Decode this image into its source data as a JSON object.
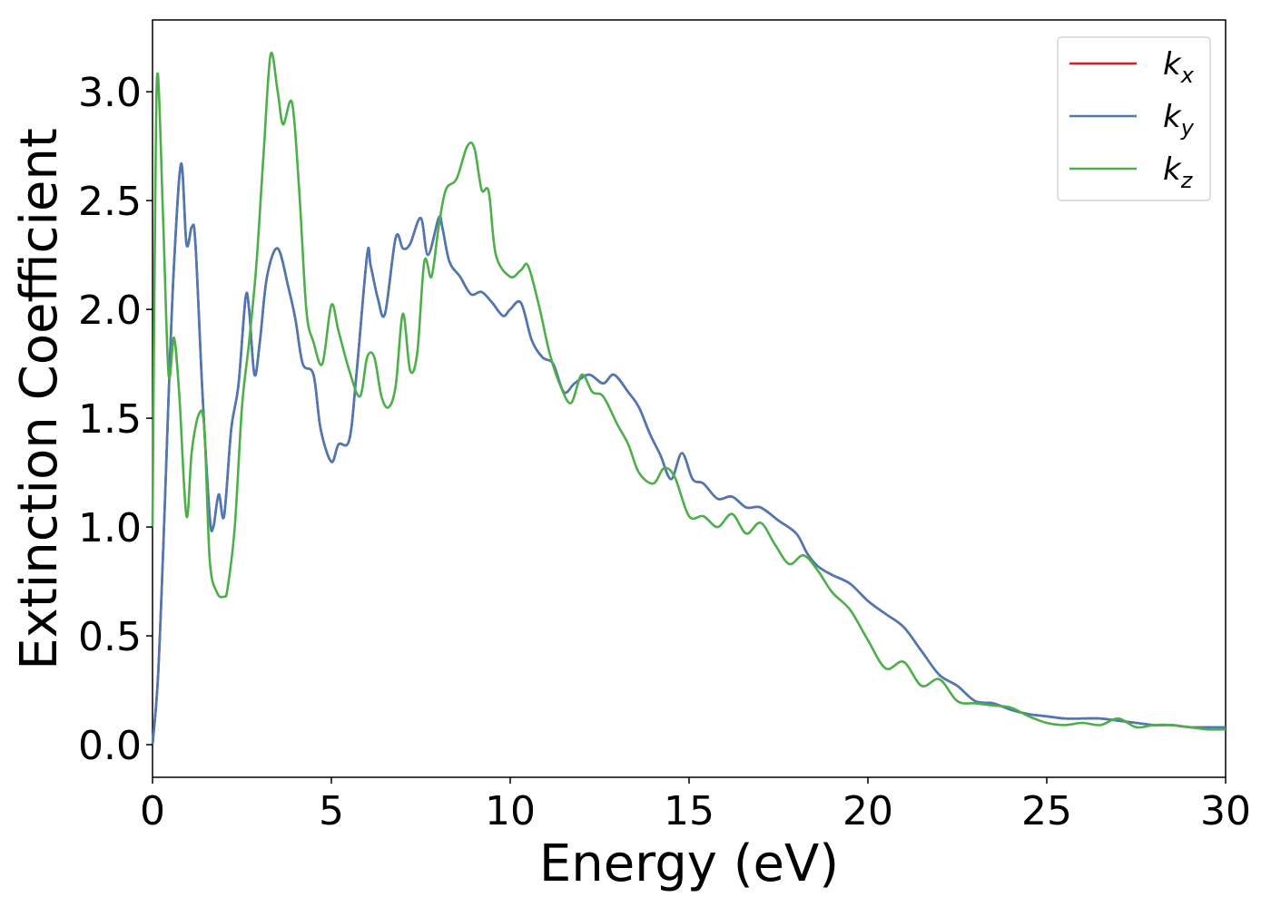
{
  "chart_data": {
    "type": "line",
    "title": "",
    "xlabel": "Energy (eV)",
    "ylabel": "Extinction Coefficient",
    "xlim": [
      0,
      30
    ],
    "ylim": [
      -0.15,
      3.33
    ],
    "xticks": [
      0,
      5,
      10,
      15,
      20,
      25,
      30
    ],
    "xtick_labels": [
      "0",
      "5",
      "10",
      "15",
      "20",
      "25",
      "30"
    ],
    "yticks": [
      0.0,
      0.5,
      1.0,
      1.5,
      2.0,
      2.5,
      3.0
    ],
    "ytick_labels": [
      "0.0",
      "0.5",
      "1.0",
      "1.5",
      "2.0",
      "2.5",
      "3.0"
    ],
    "grid": false,
    "legend_position": "top-right",
    "series": [
      {
        "name": "k_x",
        "label_base": "k",
        "label_sub": "x",
        "color": "#e41a1c",
        "x": [
          0,
          0.15,
          0.3,
          0.45,
          0.6,
          0.8,
          0.95,
          1.1,
          1.2,
          1.4,
          1.6,
          1.7,
          1.85,
          2.0,
          2.2,
          2.4,
          2.6,
          2.7,
          2.85,
          3.0,
          3.2,
          3.5,
          3.8,
          4.0,
          4.2,
          4.5,
          4.7,
          5.0,
          5.2,
          5.5,
          5.7,
          6.0,
          6.1,
          6.3,
          6.5,
          6.8,
          7.0,
          7.2,
          7.5,
          7.7,
          8.0,
          8.1,
          8.3,
          8.6,
          8.9,
          9.2,
          9.5,
          9.8,
          10.0,
          10.3,
          10.6,
          10.9,
          11.2,
          11.5,
          11.8,
          12.2,
          12.6,
          12.9,
          13.3,
          13.6,
          13.9,
          14.2,
          14.5,
          14.8,
          15.1,
          15.4,
          15.8,
          16.2,
          16.6,
          17.0,
          17.5,
          18.0,
          18.3,
          18.6,
          19.0,
          19.5,
          20.0,
          20.5,
          21.0,
          21.5,
          22.0,
          22.5,
          23.0,
          23.5,
          24.0,
          24.5,
          25.0,
          25.5,
          26.0,
          26.5,
          27.0,
          27.5,
          28.0,
          28.5,
          29.0,
          29.5,
          30.0
        ],
        "y": [
          0.0,
          0.3,
          0.9,
          1.6,
          2.2,
          2.67,
          2.3,
          2.38,
          2.3,
          1.6,
          1.05,
          1.0,
          1.15,
          1.05,
          1.45,
          1.65,
          2.05,
          2.0,
          1.7,
          1.85,
          2.15,
          2.28,
          2.1,
          1.95,
          1.75,
          1.7,
          1.45,
          1.3,
          1.38,
          1.4,
          1.7,
          2.25,
          2.2,
          2.05,
          1.98,
          2.33,
          2.28,
          2.3,
          2.42,
          2.25,
          2.42,
          2.38,
          2.22,
          2.15,
          2.07,
          2.08,
          2.03,
          1.97,
          2.0,
          2.03,
          1.86,
          1.78,
          1.75,
          1.62,
          1.66,
          1.7,
          1.66,
          1.7,
          1.62,
          1.55,
          1.43,
          1.33,
          1.22,
          1.34,
          1.22,
          1.2,
          1.13,
          1.14,
          1.09,
          1.09,
          1.03,
          0.97,
          0.88,
          0.82,
          0.78,
          0.74,
          0.66,
          0.6,
          0.54,
          0.43,
          0.32,
          0.27,
          0.2,
          0.19,
          0.16,
          0.14,
          0.13,
          0.12,
          0.12,
          0.12,
          0.11,
          0.1,
          0.09,
          0.09,
          0.08,
          0.08,
          0.08
        ]
      },
      {
        "name": "k_y",
        "label_base": "k",
        "label_sub": "y",
        "color": "#4a7ab5",
        "x": [
          0,
          0.15,
          0.3,
          0.45,
          0.6,
          0.8,
          0.95,
          1.1,
          1.2,
          1.4,
          1.6,
          1.7,
          1.85,
          2.0,
          2.2,
          2.4,
          2.6,
          2.7,
          2.85,
          3.0,
          3.2,
          3.5,
          3.8,
          4.0,
          4.2,
          4.5,
          4.7,
          5.0,
          5.2,
          5.5,
          5.7,
          6.0,
          6.1,
          6.3,
          6.5,
          6.8,
          7.0,
          7.2,
          7.5,
          7.7,
          8.0,
          8.1,
          8.3,
          8.6,
          8.9,
          9.2,
          9.5,
          9.8,
          10.0,
          10.3,
          10.6,
          10.9,
          11.2,
          11.5,
          11.8,
          12.2,
          12.6,
          12.9,
          13.3,
          13.6,
          13.9,
          14.2,
          14.5,
          14.8,
          15.1,
          15.4,
          15.8,
          16.2,
          16.6,
          17.0,
          17.5,
          18.0,
          18.3,
          18.6,
          19.0,
          19.5,
          20.0,
          20.5,
          21.0,
          21.5,
          22.0,
          22.5,
          23.0,
          23.5,
          24.0,
          24.5,
          25.0,
          25.5,
          26.0,
          26.5,
          27.0,
          27.5,
          28.0,
          28.5,
          29.0,
          29.5,
          30.0
        ],
        "y": [
          0.0,
          0.3,
          0.9,
          1.6,
          2.2,
          2.67,
          2.3,
          2.38,
          2.3,
          1.6,
          1.05,
          1.0,
          1.15,
          1.05,
          1.45,
          1.65,
          2.05,
          2.0,
          1.7,
          1.85,
          2.15,
          2.28,
          2.1,
          1.95,
          1.75,
          1.7,
          1.45,
          1.3,
          1.38,
          1.4,
          1.7,
          2.25,
          2.2,
          2.05,
          1.98,
          2.33,
          2.28,
          2.3,
          2.42,
          2.25,
          2.42,
          2.38,
          2.22,
          2.15,
          2.07,
          2.08,
          2.03,
          1.97,
          2.0,
          2.03,
          1.86,
          1.78,
          1.75,
          1.62,
          1.66,
          1.7,
          1.66,
          1.7,
          1.62,
          1.55,
          1.43,
          1.33,
          1.22,
          1.34,
          1.22,
          1.2,
          1.13,
          1.14,
          1.09,
          1.09,
          1.03,
          0.97,
          0.88,
          0.82,
          0.78,
          0.74,
          0.66,
          0.6,
          0.54,
          0.43,
          0.32,
          0.27,
          0.2,
          0.19,
          0.16,
          0.14,
          0.13,
          0.12,
          0.12,
          0.12,
          0.11,
          0.1,
          0.09,
          0.09,
          0.08,
          0.08,
          0.08
        ]
      },
      {
        "name": "k_z",
        "label_base": "k",
        "label_sub": "z",
        "color": "#4daf4a",
        "x": [
          0,
          0.08,
          0.15,
          0.3,
          0.45,
          0.6,
          0.75,
          0.95,
          1.1,
          1.3,
          1.45,
          1.6,
          1.8,
          2.0,
          2.1,
          2.3,
          2.5,
          2.7,
          2.9,
          3.1,
          3.3,
          3.5,
          3.65,
          3.9,
          4.1,
          4.3,
          4.5,
          4.75,
          5.0,
          5.2,
          5.5,
          5.8,
          6.0,
          6.2,
          6.4,
          6.6,
          6.8,
          7.0,
          7.2,
          7.4,
          7.6,
          7.8,
          8.0,
          8.2,
          8.5,
          8.8,
          9.0,
          9.2,
          9.4,
          9.6,
          10.0,
          10.3,
          10.5,
          10.8,
          11.1,
          11.4,
          11.7,
          12.0,
          12.3,
          12.6,
          13.0,
          13.3,
          13.6,
          14.0,
          14.3,
          14.6,
          15.0,
          15.4,
          15.8,
          16.2,
          16.6,
          17.0,
          17.4,
          17.8,
          18.2,
          18.6,
          19.0,
          19.5,
          20.0,
          20.5,
          21.0,
          21.5,
          22.0,
          22.5,
          23.0,
          23.5,
          24.0,
          24.5,
          25.0,
          25.5,
          26.0,
          26.5,
          27.0,
          27.5,
          28.0,
          28.5,
          29.0,
          29.5,
          30.0
        ],
        "y": [
          1.0,
          2.6,
          3.08,
          2.4,
          1.7,
          1.87,
          1.6,
          1.05,
          1.35,
          1.52,
          1.45,
          0.85,
          0.7,
          0.68,
          0.72,
          1.0,
          1.55,
          1.85,
          2.2,
          2.7,
          3.17,
          3.0,
          2.85,
          2.95,
          2.55,
          2.0,
          1.85,
          1.75,
          2.02,
          1.9,
          1.72,
          1.6,
          1.78,
          1.78,
          1.6,
          1.55,
          1.65,
          1.98,
          1.72,
          1.8,
          2.22,
          2.15,
          2.38,
          2.55,
          2.6,
          2.75,
          2.74,
          2.55,
          2.54,
          2.25,
          2.15,
          2.18,
          2.2,
          2.02,
          1.8,
          1.65,
          1.57,
          1.7,
          1.62,
          1.6,
          1.47,
          1.38,
          1.25,
          1.2,
          1.27,
          1.23,
          1.05,
          1.05,
          1.0,
          1.06,
          0.97,
          1.02,
          0.92,
          0.83,
          0.87,
          0.8,
          0.7,
          0.62,
          0.48,
          0.35,
          0.38,
          0.27,
          0.3,
          0.2,
          0.19,
          0.18,
          0.17,
          0.13,
          0.1,
          0.09,
          0.1,
          0.09,
          0.12,
          0.08,
          0.09,
          0.09,
          0.08,
          0.07,
          0.07
        ]
      }
    ]
  }
}
